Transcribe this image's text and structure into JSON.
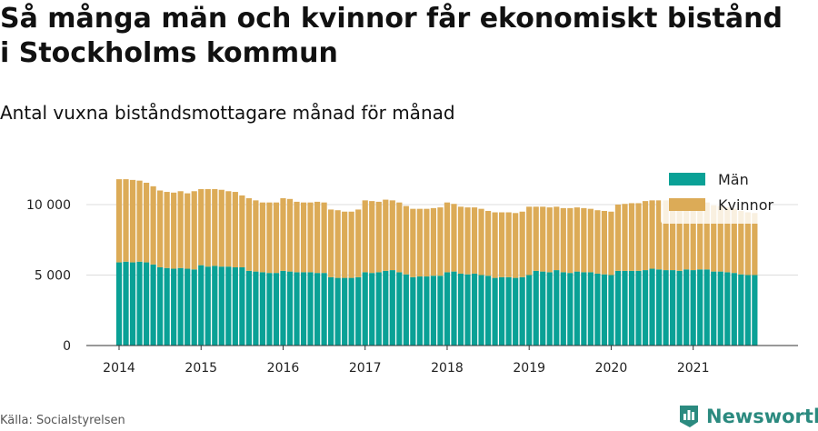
{
  "title": "Så många män och kvinnor får ekonomiskt bistånd i Stockholms kommun",
  "subtitle": "Antal vuxna biståndsmottagare månad för månad",
  "source": "Källa: Socialstyrelsen",
  "brand": "Newsworthy",
  "colors": {
    "man": "#0aa196",
    "kvinnor": "#dcab57",
    "grid": "#dddddd",
    "axis": "#333333",
    "brand": "#2b8a7f"
  },
  "chart_data": {
    "type": "bar",
    "stacked": true,
    "title": "Så många män och kvinnor får ekonomiskt bistånd i Stockholms kommun",
    "subtitle": "Antal vuxna biståndsmottagare månad för månad",
    "xlabel": "",
    "ylabel": "",
    "ylim": [
      0,
      13000
    ],
    "yticks": [
      0,
      5000,
      10000
    ],
    "ytick_labels": [
      "0",
      "5 000",
      "10 000"
    ],
    "xtick_labels": [
      "2014",
      "2015",
      "2016",
      "2017",
      "2018",
      "2019",
      "2020",
      "2021"
    ],
    "x_start": "2014-01",
    "grid": true,
    "legend_position": "top-right",
    "series": [
      {
        "name": "Män",
        "color": "#0aa196",
        "values": [
          5900,
          5950,
          5900,
          5950,
          5900,
          5750,
          5550,
          5500,
          5450,
          5500,
          5450,
          5400,
          5700,
          5600,
          5650,
          5600,
          5600,
          5550,
          5550,
          5300,
          5250,
          5200,
          5150,
          5150,
          5300,
          5250,
          5200,
          5200,
          5200,
          5150,
          5150,
          4850,
          4800,
          4800,
          4800,
          4850,
          5200,
          5150,
          5200,
          5300,
          5350,
          5200,
          5050,
          4850,
          4900,
          4900,
          4950,
          4950,
          5200,
          5250,
          5100,
          5050,
          5100,
          5000,
          4950,
          4800,
          4850,
          4850,
          4800,
          4850,
          5000,
          5300,
          5250,
          5200,
          5350,
          5200,
          5150,
          5250,
          5200,
          5200,
          5100,
          5050,
          5000,
          5300,
          5300,
          5300,
          5300,
          5350,
          5450,
          5400,
          5350,
          5350,
          5300,
          5400,
          5350,
          5400,
          5400,
          5250,
          5250,
          5200,
          5150,
          5050,
          5000,
          5000
        ]
      },
      {
        "name": "Kvinnor",
        "color": "#dcab57",
        "values": [
          5900,
          5850,
          5850,
          5750,
          5650,
          5550,
          5450,
          5400,
          5400,
          5450,
          5350,
          5550,
          5400,
          5500,
          5450,
          5450,
          5350,
          5350,
          5100,
          5150,
          5050,
          4950,
          5000,
          5000,
          5150,
          5150,
          5000,
          4950,
          4950,
          5050,
          5000,
          4800,
          4800,
          4700,
          4700,
          4800,
          5100,
          5100,
          5000,
          5050,
          4950,
          4950,
          4850,
          4850,
          4800,
          4800,
          4800,
          4850,
          4950,
          4800,
          4750,
          4750,
          4700,
          4700,
          4600,
          4650,
          4600,
          4600,
          4600,
          4650,
          4850,
          4550,
          4600,
          4600,
          4500,
          4550,
          4600,
          4550,
          4550,
          4500,
          4500,
          4500,
          4500,
          4700,
          4750,
          4800,
          4800,
          4900,
          4850,
          4900,
          4950,
          4900,
          4950,
          4850,
          4900,
          4800,
          4750,
          4700,
          4650,
          4600,
          4550,
          4500,
          4450,
          4400
        ]
      }
    ]
  }
}
